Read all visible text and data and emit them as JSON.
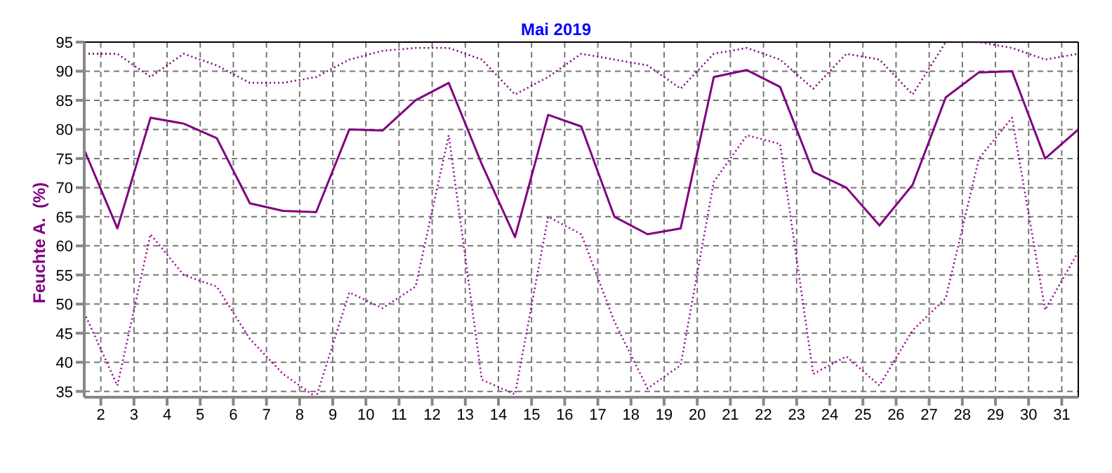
{
  "chart_data": {
    "type": "line",
    "title": "Mai 2019",
    "ylabel": "Feuchte A.  (%)",
    "x": [
      1.5,
      2.5,
      3.5,
      4.5,
      5.5,
      6.5,
      7.5,
      8.5,
      9.5,
      10.5,
      11.5,
      12.5,
      13.5,
      14.5,
      15.5,
      16.5,
      17.5,
      18.5,
      19.5,
      20.5,
      21.5,
      22.5,
      23.5,
      24.5,
      25.5,
      26.5,
      27.5,
      28.5,
      29.5,
      30.5,
      31.5
    ],
    "series": [
      {
        "color": "#800080",
        "line_style": "solid",
        "values": [
          76.5,
          63,
          82,
          81,
          78.5,
          67.3,
          66,
          65.8,
          80,
          79.8,
          85,
          88,
          74,
          61.5,
          82.5,
          80.5,
          65,
          62,
          63,
          89,
          90.2,
          87.3,
          72.7,
          70,
          63.5,
          70.5,
          85.5,
          89.8,
          90,
          75,
          80
        ]
      },
      {
        "color": "#800080",
        "line_style": "dotted",
        "values": [
          93,
          93,
          89,
          93,
          91,
          88,
          88,
          89,
          92,
          93.5,
          94,
          94,
          92,
          86,
          89,
          93,
          92,
          91,
          87,
          93,
          94,
          92,
          87,
          93,
          92,
          86,
          95,
          95,
          94,
          92,
          93
        ]
      },
      {
        "color": "#990099",
        "line_style": "dotted",
        "values": [
          48.5,
          36,
          62,
          55,
          53,
          44,
          38,
          34,
          52,
          49.3,
          53,
          79,
          37,
          34.5,
          65,
          62,
          47,
          35.5,
          39.5,
          71,
          79,
          77.5,
          38,
          41,
          36,
          45.5,
          51,
          75,
          82,
          49,
          59
        ]
      }
    ],
    "xlim": [
      1.5,
      31.5
    ],
    "xticks": [
      2,
      3,
      4,
      5,
      6,
      7,
      8,
      9,
      10,
      11,
      12,
      13,
      14,
      15,
      16,
      17,
      18,
      19,
      20,
      21,
      22,
      23,
      24,
      25,
      26,
      27,
      28,
      29,
      30,
      31
    ],
    "ylim": [
      34,
      95
    ],
    "yticks": [
      35,
      40,
      45,
      50,
      55,
      60,
      65,
      70,
      75,
      80,
      85,
      90,
      95
    ],
    "grid": true,
    "marker": "none"
  }
}
